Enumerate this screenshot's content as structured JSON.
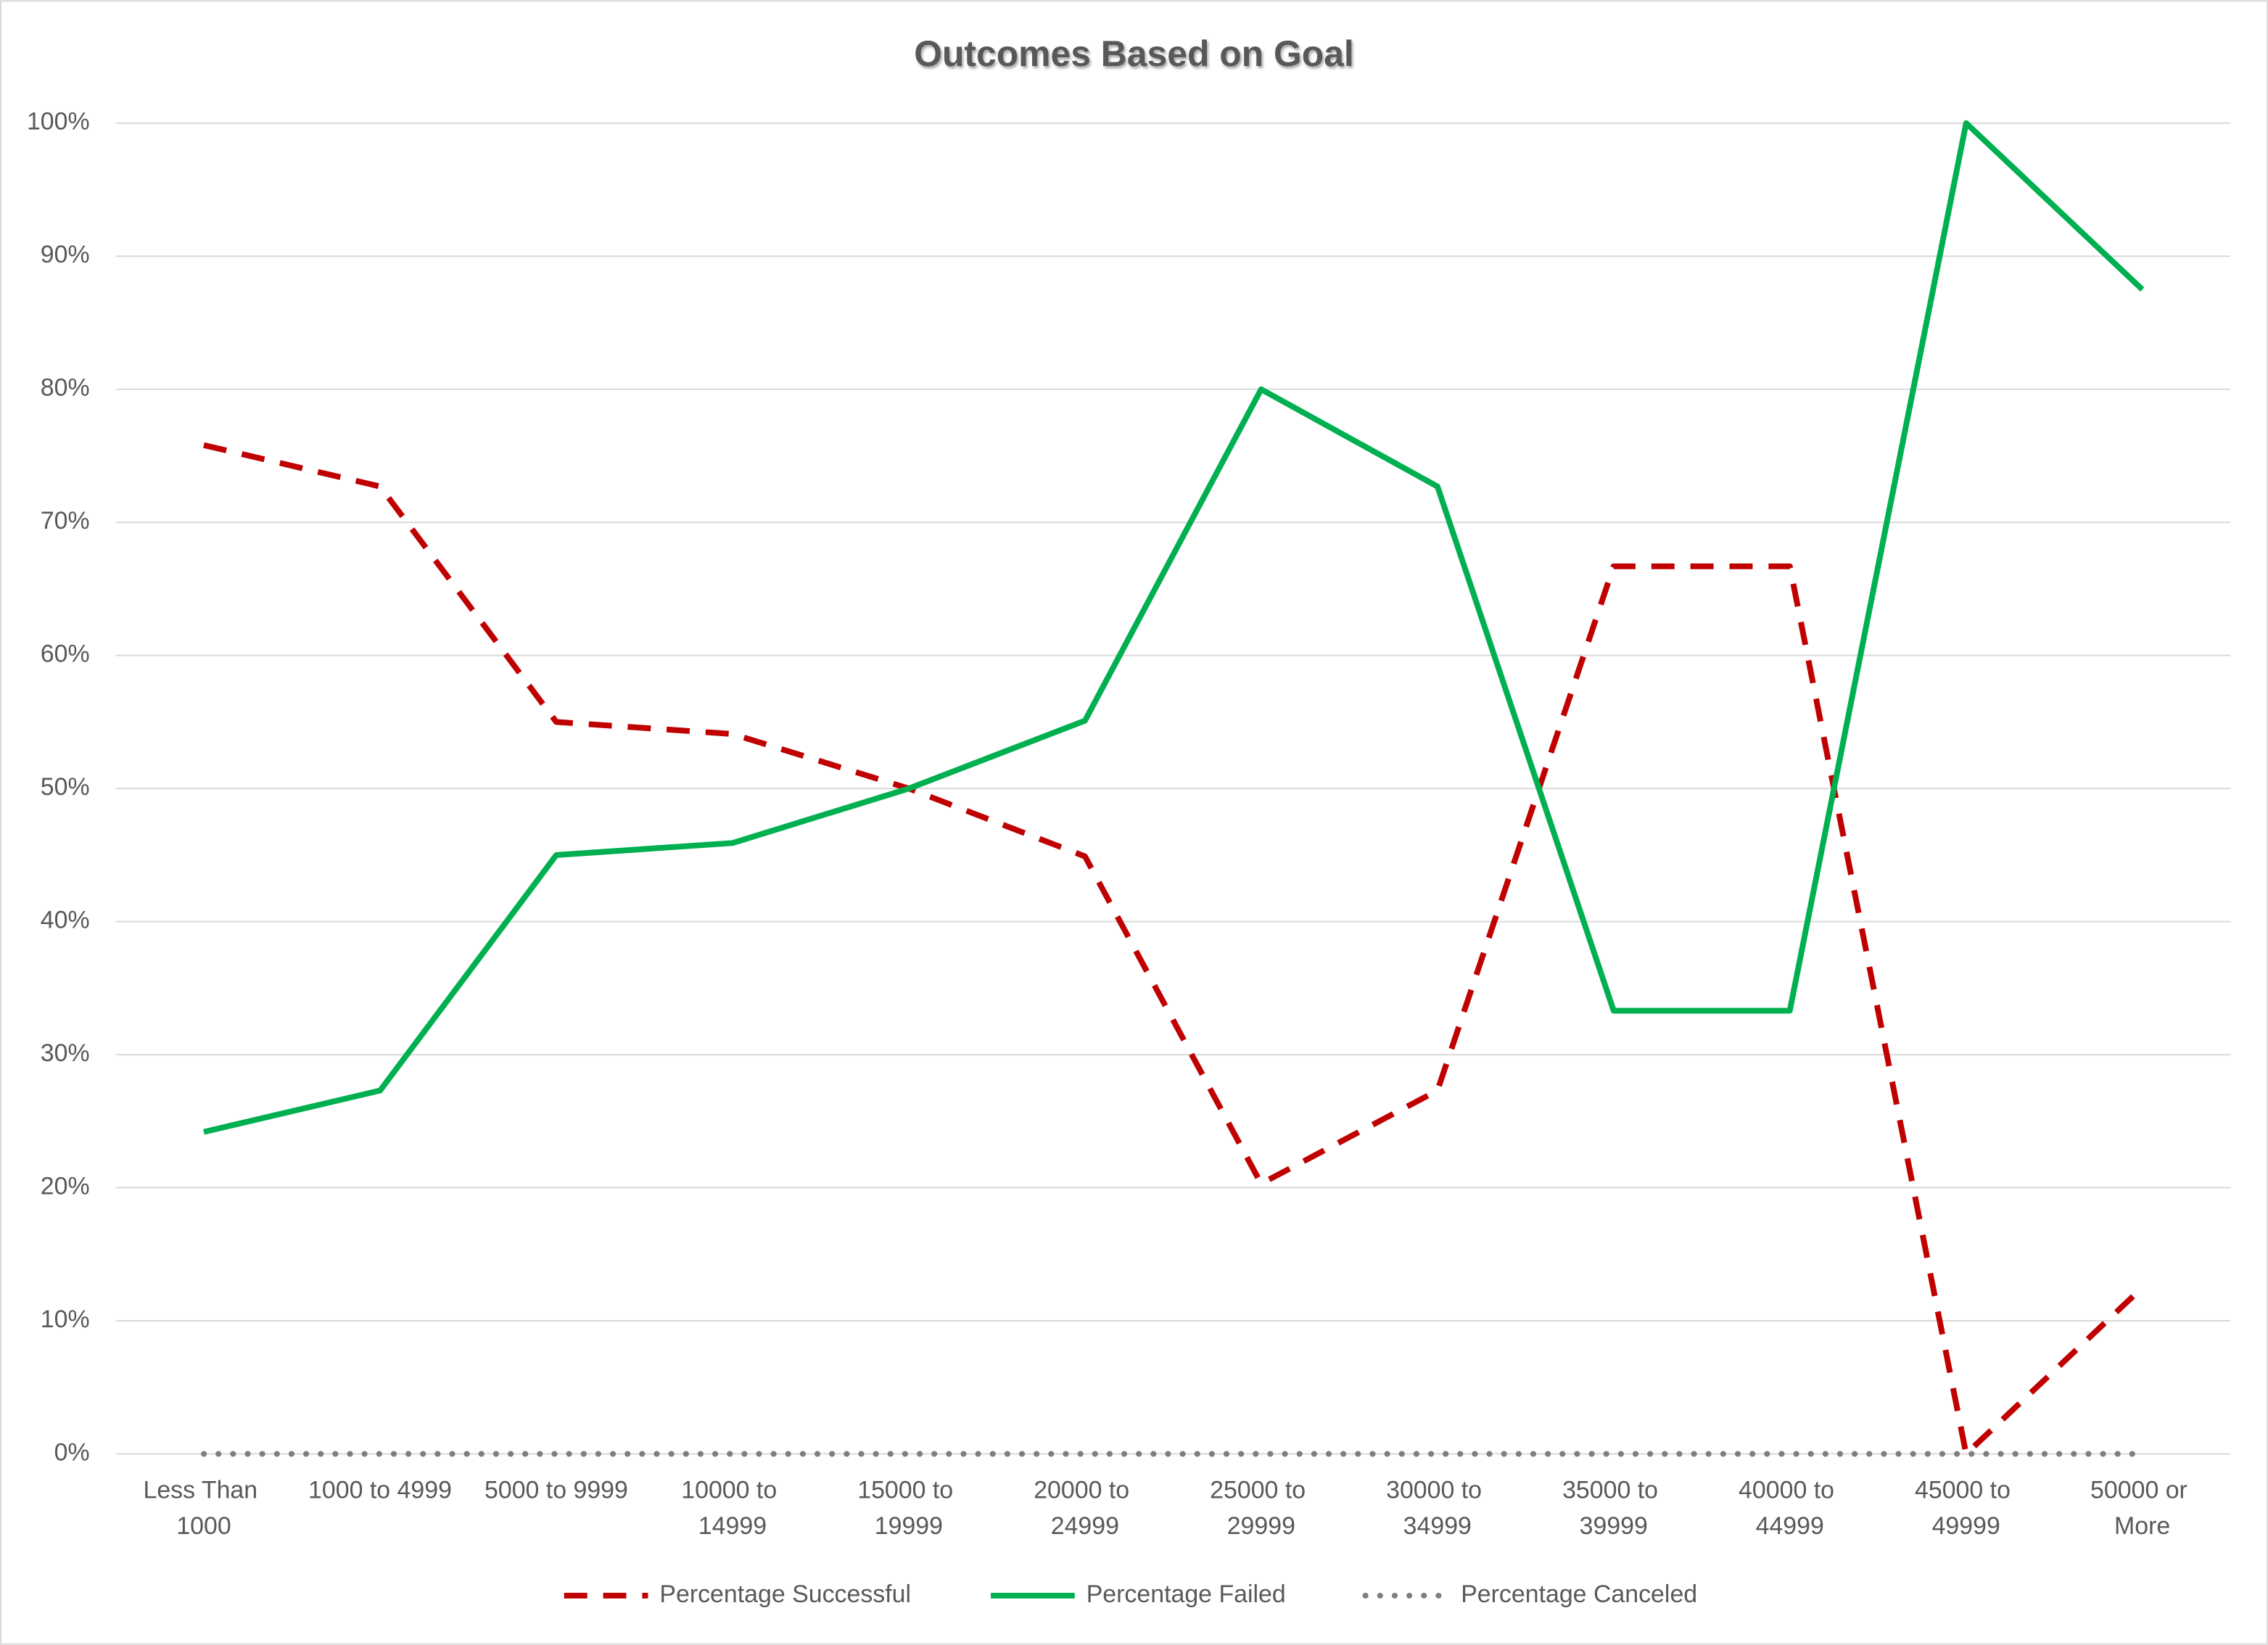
{
  "chart_data": {
    "type": "line",
    "title": "Outcomes Based on Goal",
    "categories": [
      "Less Than 1000",
      "1000 to 4999",
      "5000 to 9999",
      "10000 to 14999",
      "15000 to 19999",
      "20000 to 24999",
      "25000 to 29999",
      "30000 to 34999",
      "35000 to 39999",
      "40000 to 44999",
      "45000 to 49999",
      "50000 or More"
    ],
    "series": [
      {
        "name": "Percentage Successful",
        "color": "#c00000",
        "dash": "dashed",
        "values": [
          75.8,
          72.7,
          55,
          54.1,
          50,
          44.9,
          20.3,
          27.3,
          66.7,
          66.7,
          0,
          12.5
        ]
      },
      {
        "name": "Percentage Failed",
        "color": "#00b050",
        "dash": "solid",
        "values": [
          24.2,
          27.3,
          45,
          45.9,
          50,
          55.1,
          80,
          72.7,
          33.3,
          33.3,
          100,
          87.5
        ]
      },
      {
        "name": "Percentage Canceled",
        "color": "#7f7f7f",
        "dash": "dotted",
        "values": [
          0,
          0,
          0,
          0,
          0,
          0,
          0,
          0,
          0,
          0,
          0,
          0
        ]
      }
    ],
    "ylim": [
      0,
      100
    ],
    "yticks": [
      {
        "value": 0,
        "label": "0%"
      },
      {
        "value": 10,
        "label": "10%"
      },
      {
        "value": 20,
        "label": "20%"
      },
      {
        "value": 30,
        "label": "30%"
      },
      {
        "value": 40,
        "label": "40%"
      },
      {
        "value": 50,
        "label": "50%"
      },
      {
        "value": 60,
        "label": "60%"
      },
      {
        "value": 70,
        "label": "70%"
      },
      {
        "value": 80,
        "label": "80%"
      },
      {
        "value": 90,
        "label": "90%"
      },
      {
        "value": 100,
        "label": "100%"
      }
    ],
    "grid": true,
    "legend": "bottom"
  }
}
